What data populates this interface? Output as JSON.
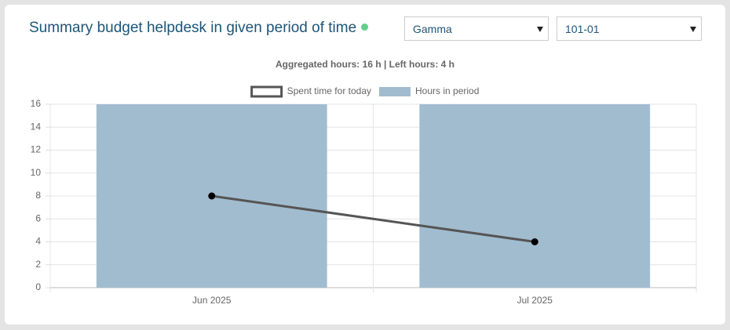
{
  "header": {
    "title": "Summary budget helpdesk in given period of time",
    "selects": [
      "Gamma",
      "101-01"
    ]
  },
  "chart_data": {
    "type": "bar",
    "title": "Aggregated hours: 16 h | Left hours: 4 h",
    "categories": [
      "Jun 2025",
      "Jul 2025"
    ],
    "series": [
      {
        "name": "Spent time for today",
        "type": "line",
        "color": "#555555",
        "values": [
          8,
          4
        ]
      },
      {
        "name": "Hours in period",
        "type": "bar",
        "color": "#a2bccf",
        "values": [
          16,
          16
        ]
      }
    ],
    "ylim": [
      0,
      16
    ],
    "yticks": [
      0,
      2,
      4,
      6,
      8,
      10,
      12,
      14,
      16
    ],
    "grid": true,
    "legend": "top"
  }
}
